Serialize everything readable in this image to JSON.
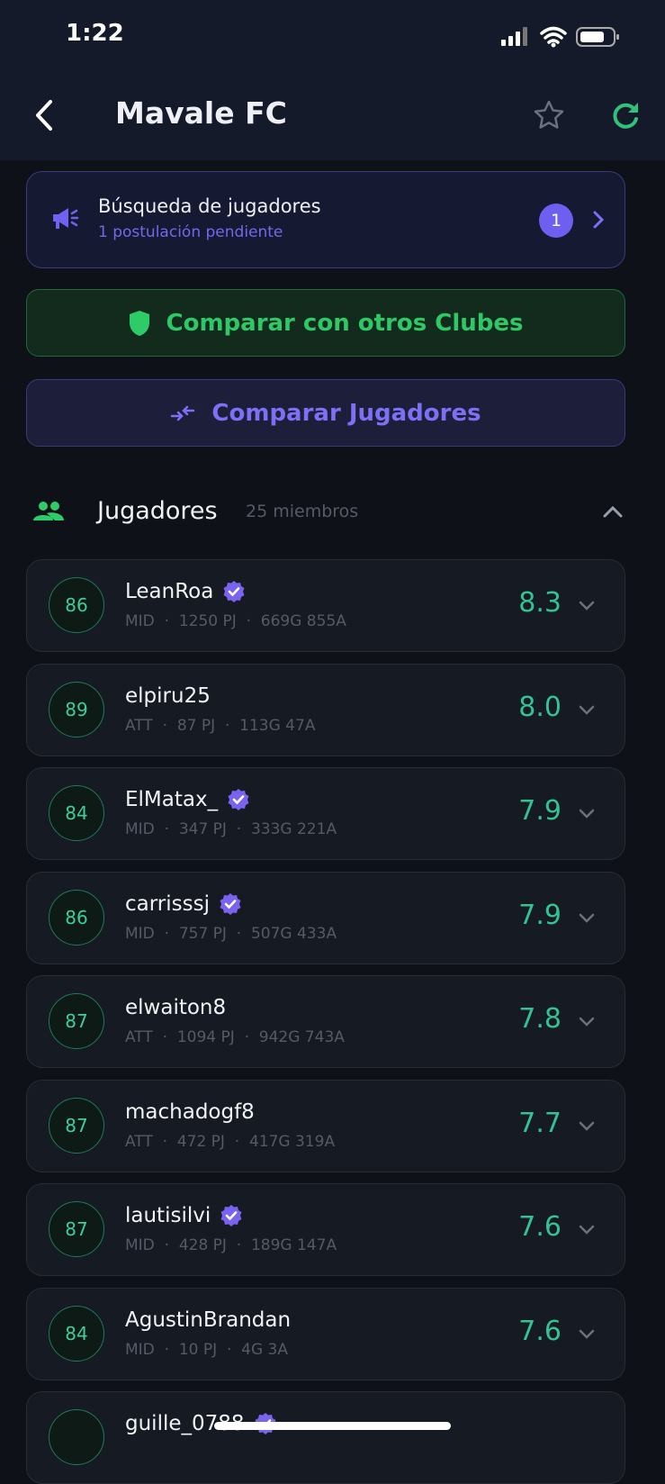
{
  "status_bar": {
    "time": "1:22"
  },
  "header": {
    "title": "Mavale FC"
  },
  "recruit": {
    "title": "Búsqueda de jugadores",
    "subtitle": "1 postulación pendiente",
    "badge": "1"
  },
  "compare_clubs": "Comparar con otros Clubes",
  "compare_players": "Comparar Jugadores",
  "section": {
    "title": "Jugadores",
    "count": "25 miembros"
  },
  "separator": "·",
  "players": [
    {
      "rating": 86,
      "name": "LeanRoa",
      "verified": true,
      "position": "MID",
      "matches": "1250 PJ",
      "goals_assists": "669G 855A",
      "score": "8.3"
    },
    {
      "rating": 89,
      "name": "elpiru25",
      "verified": false,
      "position": "ATT",
      "matches": "87 PJ",
      "goals_assists": "113G 47A",
      "score": "8.0"
    },
    {
      "rating": 84,
      "name": "ElMatax_",
      "verified": true,
      "position": "MID",
      "matches": "347 PJ",
      "goals_assists": "333G 221A",
      "score": "7.9"
    },
    {
      "rating": 86,
      "name": "carrisssj",
      "verified": true,
      "position": "MID",
      "matches": "757 PJ",
      "goals_assists": "507G 433A",
      "score": "7.9"
    },
    {
      "rating": 87,
      "name": "elwaiton8",
      "verified": false,
      "position": "ATT",
      "matches": "1094 PJ",
      "goals_assists": "942G 743A",
      "score": "7.8"
    },
    {
      "rating": 87,
      "name": "machadogf8",
      "verified": false,
      "position": "ATT",
      "matches": "472 PJ",
      "goals_assists": "417G 319A",
      "score": "7.7"
    },
    {
      "rating": 87,
      "name": "lautisilvi",
      "verified": true,
      "position": "MID",
      "matches": "428 PJ",
      "goals_assists": "189G 147A",
      "score": "7.6"
    },
    {
      "rating": 84,
      "name": "AgustinBrandan",
      "verified": false,
      "position": "MID",
      "matches": "10 PJ",
      "goals_assists": "4G 3A",
      "score": "7.6"
    },
    {
      "name": "guille_0788",
      "verified": true
    }
  ]
}
